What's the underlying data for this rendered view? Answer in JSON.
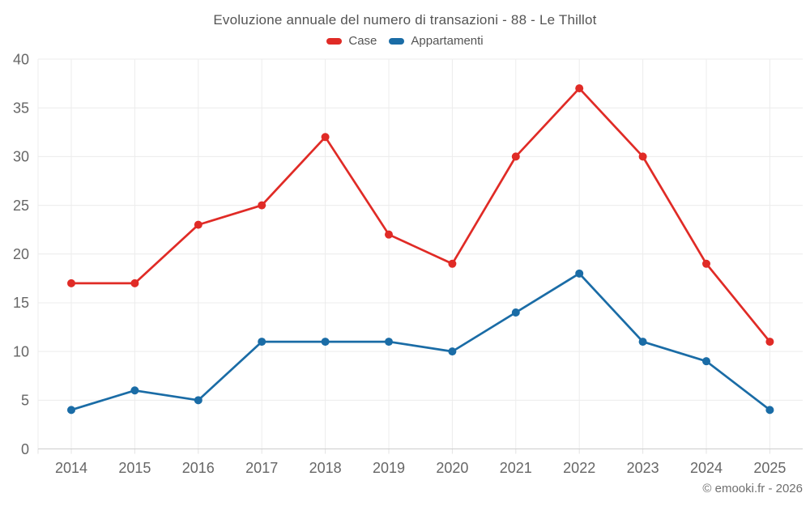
{
  "header": {
    "title": "Evoluzione annuale del numero di transazioni - 88 - Le Thillot"
  },
  "footer": {
    "credit": "© emooki.fr - 2026"
  },
  "chart_data": {
    "type": "line",
    "title": "Evoluzione annuale del numero di transazioni - 88 - Le Thillot",
    "categories": [
      "2014",
      "2015",
      "2016",
      "2017",
      "2018",
      "2019",
      "2020",
      "2021",
      "2022",
      "2023",
      "2024",
      "2025"
    ],
    "series": [
      {
        "name": "Case",
        "color": "#e02b26",
        "values": [
          17,
          17,
          23,
          25,
          32,
          22,
          19,
          30,
          37,
          30,
          19,
          11
        ]
      },
      {
        "name": "Appartamenti",
        "color": "#1a6ca6",
        "values": [
          4,
          6,
          5,
          11,
          11,
          11,
          10,
          14,
          18,
          11,
          9,
          4
        ]
      }
    ],
    "xlabel": "",
    "ylabel": "",
    "ylim": [
      0,
      40
    ],
    "ytick_step": 5,
    "yticks": [
      0,
      5,
      10,
      15,
      20,
      25,
      30,
      35,
      40
    ],
    "grid": true,
    "legend_position": "top",
    "marker": "circle",
    "colors": {
      "grid_line": "#ececec",
      "axis_line": "#cdcdcd",
      "tick_mark": "#e3e3e3",
      "axis_label": "#666666",
      "title_text": "#545454",
      "credit_text": "#6f6f6f"
    }
  }
}
